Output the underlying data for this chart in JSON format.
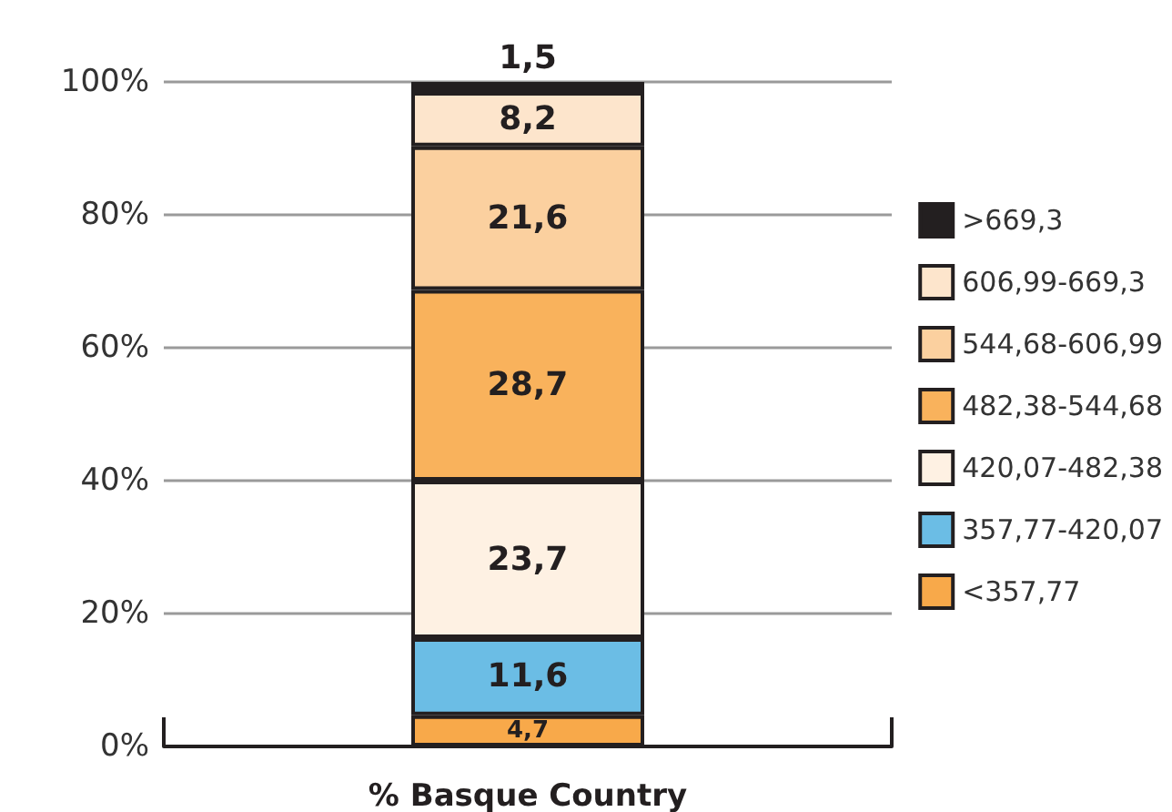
{
  "chart_data": {
    "type": "bar",
    "stacked": true,
    "categories": [
      "% Basque Country"
    ],
    "series": [
      {
        "name": "<357,77",
        "color": "#f8a94a",
        "values": [
          4.7
        ],
        "value_labels": [
          "4,7"
        ]
      },
      {
        "name": "357,77-420,07",
        "color": "#6bbde5",
        "values": [
          11.6
        ],
        "value_labels": [
          "11,6"
        ]
      },
      {
        "name": "420,07-482,38",
        "color": "#fef1e3",
        "values": [
          23.7
        ],
        "value_labels": [
          "23,7"
        ]
      },
      {
        "name": "482,38-544,68",
        "color": "#f9b25c",
        "values": [
          28.7
        ],
        "value_labels": [
          "28,7"
        ]
      },
      {
        "name": "544,68-606,99",
        "color": "#fbd09f",
        "values": [
          21.6
        ],
        "value_labels": [
          "21,6"
        ]
      },
      {
        "name": "606,99-669,3",
        "color": "#fde5cc",
        "values": [
          8.2
        ],
        "value_labels": [
          "8,2"
        ]
      },
      {
        "name": ">669,3",
        "color": "#231f20",
        "values": [
          1.5
        ],
        "value_labels": [
          "1,5"
        ]
      }
    ],
    "ylim": [
      0,
      100
    ],
    "yticks": [
      {
        "value": 0,
        "label": "0%"
      },
      {
        "value": 20,
        "label": "20%"
      },
      {
        "value": 40,
        "label": "40%"
      },
      {
        "value": 60,
        "label": "60%"
      },
      {
        "value": 80,
        "label": "80%"
      },
      {
        "value": 100,
        "label": "100%"
      }
    ],
    "grid": "y",
    "legend": "right"
  }
}
